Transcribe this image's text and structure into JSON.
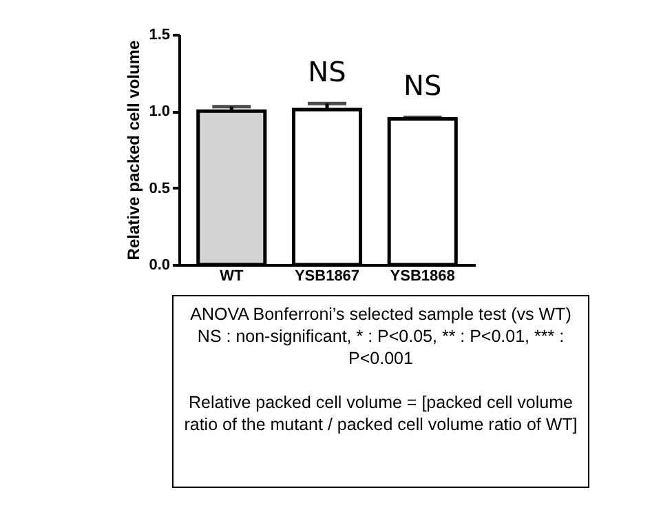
{
  "chart_data": {
    "type": "bar",
    "ylabel": "Relative packed cell volume",
    "categories": [
      "WT",
      "YSB1867",
      "YSB1868"
    ],
    "values": [
      1.0,
      1.01,
      0.95
    ],
    "colors": [
      "#d3d3d3",
      "#ffffff",
      "#ffffff"
    ],
    "errors": [
      [
        1.0,
        1.03
      ],
      [
        1.01,
        1.05
      ],
      [
        0.95,
        0.96
      ]
    ],
    "ylim": [
      0,
      1.5
    ],
    "yticks": [
      {
        "value": 0,
        "label": "0.0"
      },
      {
        "value": 0.5,
        "label": "0.5"
      },
      {
        "value": 1,
        "label": "1.0"
      },
      {
        "value": 1.5,
        "label": "1.5"
      }
    ],
    "value_labels": [
      null,
      "NS",
      "NS"
    ],
    "annotations": [
      "ANOVA Bonferroni’s selected sample test (vs WT) NS : non-significant, * : P<0.05, ** : P<0.01, *** : P<0.001",
      "Relative packed cell volume = [packed cell volume ratio of the mutant / packed cell volume ratio of WT]"
    ]
  }
}
